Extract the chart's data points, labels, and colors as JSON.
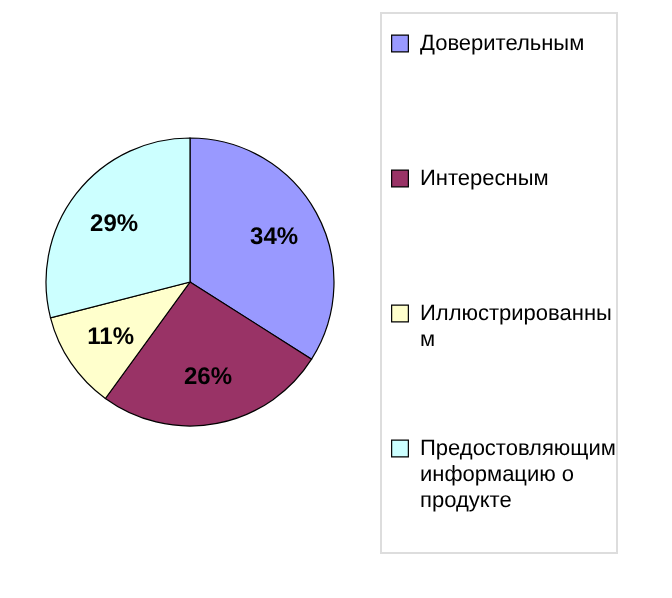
{
  "chart_data": {
    "type": "pie",
    "categories": [
      "Доверительным",
      "Интересным",
      "Иллюстрированным",
      "Предостовляющим информацию о продукте"
    ],
    "values": [
      34,
      26,
      11,
      29
    ],
    "value_labels": [
      "34%",
      "26%",
      "11%",
      "29%"
    ],
    "colors": [
      "#9999ff",
      "#993366",
      "#ffffcc",
      "#ccffff"
    ],
    "legend": "right"
  }
}
